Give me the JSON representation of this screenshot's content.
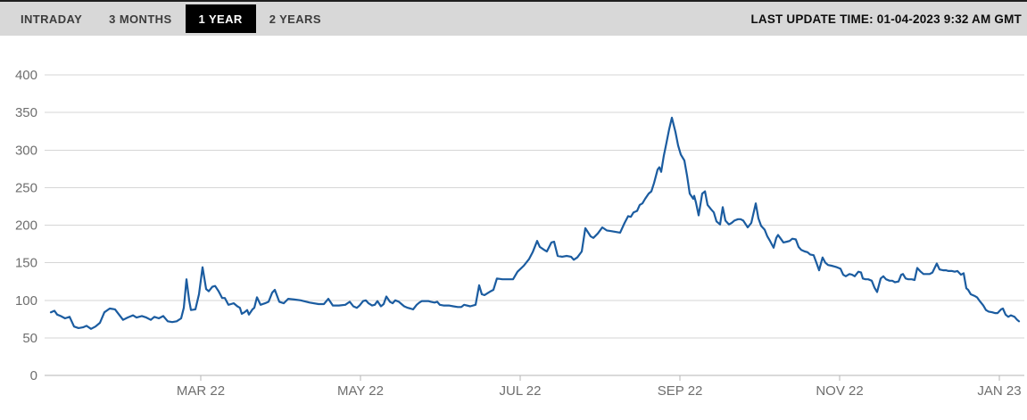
{
  "header": {
    "tabs": [
      {
        "label": "INTRADAY",
        "active": false
      },
      {
        "label": "3 MONTHS",
        "active": false
      },
      {
        "label": "1 YEAR",
        "active": true
      },
      {
        "label": "2 YEARS",
        "active": false
      }
    ],
    "last_update": "LAST UPDATE TIME: 01-04-2023 9:32 AM GMT"
  },
  "colors": {
    "line": "#1b5ca0",
    "tab_bar_bg": "#d8d8d8",
    "active_tab_bg": "#000000",
    "active_tab_text": "#ffffff",
    "inactive_tab_text": "#3c3c3c",
    "axis_text": "#6e6e6e",
    "gridline": "#d6d6d6"
  },
  "chart_data": {
    "type": "line",
    "title": "",
    "xlabel": "",
    "ylabel": "",
    "legend": "none",
    "grid": "horizontal",
    "ylim": [
      0,
      400
    ],
    "yticks": [
      0,
      50,
      100,
      150,
      200,
      250,
      300,
      350,
      400
    ],
    "x_ticks": [
      {
        "label": "MAR 22",
        "fx": 0.1594
      },
      {
        "label": "MAY 22",
        "fx": 0.3224
      },
      {
        "label": "JUL 22",
        "fx": 0.4854
      },
      {
        "label": "SEP 22",
        "fx": 0.6485
      },
      {
        "label": "NOV 22",
        "fx": 0.8115
      },
      {
        "label": "JAN 23",
        "fx": 0.9745
      }
    ],
    "x_unit": "fraction of time axis, Jan 2022 through Jan 2023",
    "points": [
      [
        0.0064,
        84
      ],
      [
        0.01,
        86
      ],
      [
        0.0128,
        81
      ],
      [
        0.0164,
        79
      ],
      [
        0.0209,
        76
      ],
      [
        0.0255,
        78
      ],
      [
        0.0301,
        65
      ],
      [
        0.0346,
        63
      ],
      [
        0.0392,
        64
      ],
      [
        0.0428,
        66
      ],
      [
        0.0474,
        62
      ],
      [
        0.0519,
        65
      ],
      [
        0.0565,
        70
      ],
      [
        0.061,
        84
      ],
      [
        0.0665,
        89
      ],
      [
        0.0719,
        88
      ],
      [
        0.0765,
        80
      ],
      [
        0.0801,
        74
      ],
      [
        0.0847,
        77
      ],
      [
        0.0902,
        80
      ],
      [
        0.0938,
        77
      ],
      [
        0.0993,
        79
      ],
      [
        0.1038,
        77
      ],
      [
        0.1084,
        74
      ],
      [
        0.112,
        78
      ],
      [
        0.1166,
        76
      ],
      [
        0.1211,
        79
      ],
      [
        0.1257,
        72
      ],
      [
        0.1302,
        71
      ],
      [
        0.1348,
        72
      ],
      [
        0.1393,
        76
      ],
      [
        0.1421,
        90
      ],
      [
        0.1448,
        128
      ],
      [
        0.1475,
        100
      ],
      [
        0.1494,
        87
      ],
      [
        0.1539,
        88
      ],
      [
        0.1576,
        108
      ],
      [
        0.1612,
        144
      ],
      [
        0.1648,
        115
      ],
      [
        0.1676,
        112
      ],
      [
        0.1712,
        118
      ],
      [
        0.174,
        119
      ],
      [
        0.1776,
        112
      ],
      [
        0.1812,
        103
      ],
      [
        0.184,
        103
      ],
      [
        0.1876,
        94
      ],
      [
        0.1903,
        95
      ],
      [
        0.1931,
        96
      ],
      [
        0.1967,
        92
      ],
      [
        0.1994,
        90
      ],
      [
        0.2013,
        82
      ],
      [
        0.204,
        84
      ],
      [
        0.2067,
        87
      ],
      [
        0.2086,
        81
      ],
      [
        0.2122,
        88
      ],
      [
        0.214,
        90
      ],
      [
        0.2168,
        104
      ],
      [
        0.2204,
        94
      ],
      [
        0.225,
        96
      ],
      [
        0.2286,
        98
      ],
      [
        0.2322,
        110
      ],
      [
        0.235,
        114
      ],
      [
        0.2395,
        98
      ],
      [
        0.2441,
        96
      ],
      [
        0.2486,
        102
      ],
      [
        0.255,
        101
      ],
      [
        0.2614,
        100
      ],
      [
        0.2705,
        97
      ],
      [
        0.2796,
        95
      ],
      [
        0.2851,
        95
      ],
      [
        0.2896,
        102
      ],
      [
        0.2942,
        93
      ],
      [
        0.3005,
        93
      ],
      [
        0.3069,
        94
      ],
      [
        0.3115,
        98
      ],
      [
        0.3151,
        92
      ],
      [
        0.3188,
        90
      ],
      [
        0.3215,
        93
      ],
      [
        0.3251,
        99
      ],
      [
        0.3279,
        100
      ],
      [
        0.3306,
        96
      ],
      [
        0.3342,
        93
      ],
      [
        0.337,
        94
      ],
      [
        0.3397,
        99
      ],
      [
        0.3433,
        92
      ],
      [
        0.3461,
        95
      ],
      [
        0.3488,
        105
      ],
      [
        0.3525,
        98
      ],
      [
        0.3552,
        96
      ],
      [
        0.3579,
        100
      ],
      [
        0.3616,
        98
      ],
      [
        0.3643,
        95
      ],
      [
        0.367,
        92
      ],
      [
        0.3707,
        90
      ],
      [
        0.3734,
        89
      ],
      [
        0.3761,
        88
      ],
      [
        0.3798,
        94
      ],
      [
        0.3825,
        97
      ],
      [
        0.3852,
        99
      ],
      [
        0.3916,
        99
      ],
      [
        0.3943,
        98
      ],
      [
        0.398,
        97
      ],
      [
        0.4007,
        98
      ],
      [
        0.4034,
        94
      ],
      [
        0.4071,
        93
      ],
      [
        0.4126,
        93
      ],
      [
        0.4171,
        92
      ],
      [
        0.4217,
        91
      ],
      [
        0.4253,
        91
      ],
      [
        0.4281,
        94
      ],
      [
        0.4344,
        92
      ],
      [
        0.4399,
        94
      ],
      [
        0.4435,
        120
      ],
      [
        0.4463,
        108
      ],
      [
        0.449,
        107
      ],
      [
        0.4554,
        112
      ],
      [
        0.4581,
        114
      ],
      [
        0.4617,
        129
      ],
      [
        0.4672,
        128
      ],
      [
        0.4736,
        128
      ],
      [
        0.4781,
        128
      ],
      [
        0.4827,
        138
      ],
      [
        0.4891,
        146
      ],
      [
        0.4945,
        155
      ],
      [
        0.4982,
        164
      ],
      [
        0.5027,
        179
      ],
      [
        0.5055,
        171
      ],
      [
        0.51,
        167
      ],
      [
        0.5127,
        165
      ],
      [
        0.5173,
        177
      ],
      [
        0.52,
        178
      ],
      [
        0.5237,
        159
      ],
      [
        0.5282,
        158
      ],
      [
        0.5328,
        159
      ],
      [
        0.5373,
        158
      ],
      [
        0.5401,
        154
      ],
      [
        0.5437,
        157
      ],
      [
        0.5483,
        165
      ],
      [
        0.5519,
        196
      ],
      [
        0.5574,
        185
      ],
      [
        0.5601,
        183
      ],
      [
        0.5647,
        189
      ],
      [
        0.5692,
        197
      ],
      [
        0.5738,
        193
      ],
      [
        0.5783,
        192
      ],
      [
        0.5829,
        191
      ],
      [
        0.5874,
        190
      ],
      [
        0.592,
        203
      ],
      [
        0.5956,
        212
      ],
      [
        0.5984,
        211
      ],
      [
        0.6011,
        217
      ],
      [
        0.6047,
        219
      ],
      [
        0.6075,
        227
      ],
      [
        0.6102,
        229
      ],
      [
        0.6129,
        235
      ],
      [
        0.6166,
        242
      ],
      [
        0.6193,
        245
      ],
      [
        0.622,
        256
      ],
      [
        0.6257,
        274
      ],
      [
        0.6275,
        277
      ],
      [
        0.6293,
        271
      ],
      [
        0.632,
        292
      ],
      [
        0.6348,
        310
      ],
      [
        0.6375,
        328
      ],
      [
        0.6403,
        343
      ],
      [
        0.6439,
        324
      ],
      [
        0.6466,
        306
      ],
      [
        0.6494,
        294
      ],
      [
        0.653,
        286
      ],
      [
        0.6557,
        266
      ],
      [
        0.6585,
        242
      ],
      [
        0.6621,
        235
      ],
      [
        0.663,
        239
      ],
      [
        0.6648,
        230
      ],
      [
        0.6676,
        213
      ],
      [
        0.6712,
        242
      ],
      [
        0.674,
        245
      ],
      [
        0.6767,
        227
      ],
      [
        0.6803,
        221
      ],
      [
        0.6831,
        217
      ],
      [
        0.6858,
        205
      ],
      [
        0.6894,
        201
      ],
      [
        0.6922,
        224
      ],
      [
        0.6949,
        206
      ],
      [
        0.6985,
        201
      ],
      [
        0.7013,
        203
      ],
      [
        0.704,
        206
      ],
      [
        0.7077,
        208
      ],
      [
        0.7104,
        208
      ],
      [
        0.7131,
        206
      ],
      [
        0.7177,
        197
      ],
      [
        0.7213,
        203
      ],
      [
        0.7259,
        229
      ],
      [
        0.7286,
        209
      ],
      [
        0.7313,
        199
      ],
      [
        0.735,
        194
      ],
      [
        0.7377,
        185
      ],
      [
        0.7404,
        179
      ],
      [
        0.7441,
        170
      ],
      [
        0.7468,
        183
      ],
      [
        0.7486,
        187
      ],
      [
        0.7514,
        182
      ],
      [
        0.7541,
        177
      ],
      [
        0.7577,
        178
      ],
      [
        0.7605,
        179
      ],
      [
        0.7632,
        182
      ],
      [
        0.7668,
        181
      ],
      [
        0.7696,
        171
      ],
      [
        0.7723,
        167
      ],
      [
        0.7759,
        165
      ],
      [
        0.7787,
        164
      ],
      [
        0.7814,
        161
      ],
      [
        0.785,
        160
      ],
      [
        0.7878,
        150
      ],
      [
        0.7905,
        140
      ],
      [
        0.7941,
        157
      ],
      [
        0.7969,
        150
      ],
      [
        0.7996,
        147
      ],
      [
        0.8033,
        146
      ],
      [
        0.806,
        145
      ],
      [
        0.8087,
        144
      ],
      [
        0.8124,
        142
      ],
      [
        0.8151,
        134
      ],
      [
        0.8178,
        132
      ],
      [
        0.8215,
        135
      ],
      [
        0.8242,
        134
      ],
      [
        0.8269,
        132
      ],
      [
        0.8306,
        138
      ],
      [
        0.8333,
        137
      ],
      [
        0.8352,
        129
      ],
      [
        0.8379,
        128
      ],
      [
        0.8406,
        128
      ],
      [
        0.8443,
        126
      ],
      [
        0.847,
        117
      ],
      [
        0.8497,
        111
      ],
      [
        0.8534,
        129
      ],
      [
        0.8561,
        132
      ],
      [
        0.8588,
        128
      ],
      [
        0.8625,
        126
      ],
      [
        0.8652,
        126
      ],
      [
        0.8679,
        124
      ],
      [
        0.8716,
        125
      ],
      [
        0.8743,
        134
      ],
      [
        0.8761,
        135
      ],
      [
        0.8789,
        129
      ],
      [
        0.8816,
        128
      ],
      [
        0.8852,
        128
      ],
      [
        0.888,
        127
      ],
      [
        0.8907,
        143
      ],
      [
        0.8943,
        138
      ],
      [
        0.8971,
        135
      ],
      [
        0.8998,
        135
      ],
      [
        0.9034,
        135
      ],
      [
        0.9062,
        137
      ],
      [
        0.9107,
        149
      ],
      [
        0.9135,
        141
      ],
      [
        0.9171,
        140
      ],
      [
        0.9199,
        140
      ],
      [
        0.9226,
        139
      ],
      [
        0.9262,
        139
      ],
      [
        0.929,
        138
      ],
      [
        0.9317,
        139
      ],
      [
        0.9353,
        134
      ],
      [
        0.9381,
        136
      ],
      [
        0.9408,
        116
      ],
      [
        0.9426,
        114
      ],
      [
        0.9454,
        108
      ],
      [
        0.949,
        106
      ],
      [
        0.9517,
        104
      ],
      [
        0.9545,
        99
      ],
      [
        0.9581,
        93
      ],
      [
        0.9608,
        87
      ],
      [
        0.9636,
        85
      ],
      [
        0.9672,
        84
      ],
      [
        0.9699,
        83
      ],
      [
        0.9727,
        83
      ],
      [
        0.9763,
        88
      ],
      [
        0.9781,
        89
      ],
      [
        0.9809,
        81
      ],
      [
        0.9836,
        78
      ],
      [
        0.9863,
        80
      ],
      [
        0.99,
        78
      ],
      [
        0.9927,
        74
      ],
      [
        0.9945,
        72
      ]
    ]
  }
}
